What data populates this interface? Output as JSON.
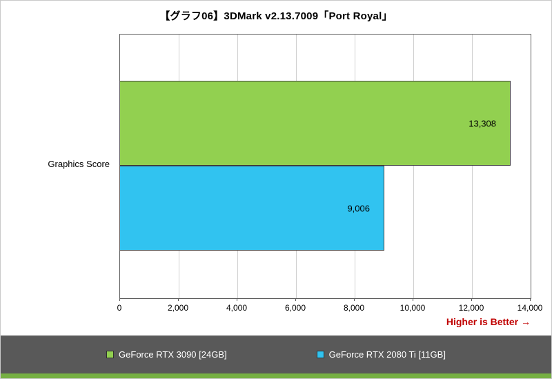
{
  "title": "【グラフ06】3DMark v2.13.7009「Port Royal」",
  "higher_is_better": "Higher is Better →",
  "category_label": "Graphics Score",
  "legend": [
    {
      "label": "GeForce RTX 3090 [24GB]",
      "color": "#92d050"
    },
    {
      "label": "GeForce RTX 2080 Ti [11GB]",
      "color": "#31c3f0"
    }
  ],
  "chart_data": {
    "type": "bar",
    "orientation": "horizontal",
    "title": "【グラフ06】3DMark v2.13.7009「Port Royal」",
    "categories": [
      "Graphics Score"
    ],
    "series": [
      {
        "name": "GeForce RTX 3090 [24GB]",
        "values": [
          13308
        ],
        "color": "#92d050"
      },
      {
        "name": "GeForce RTX 2080 Ti [11GB]",
        "values": [
          9006
        ],
        "color": "#31c3f0"
      }
    ],
    "value_labels": [
      "13,308",
      "9,006"
    ],
    "xlabel": "",
    "ylabel": "",
    "xlim": [
      0,
      14000
    ],
    "x_ticks": [
      0,
      2000,
      4000,
      6000,
      8000,
      10000,
      12000,
      14000
    ],
    "x_tick_labels": [
      "0",
      "2,000",
      "4,000",
      "6,000",
      "8,000",
      "10,000",
      "12,000",
      "14,000"
    ],
    "grid": true,
    "legend_position": "bottom",
    "annotation": "Higher is Better →"
  },
  "colors": {
    "bar_green": "#92d050",
    "bar_blue": "#31c3f0",
    "footer_bg": "#595959",
    "footer_strip": "#76b043",
    "note_red": "#c00000",
    "gridline": "#cfcfcf"
  }
}
